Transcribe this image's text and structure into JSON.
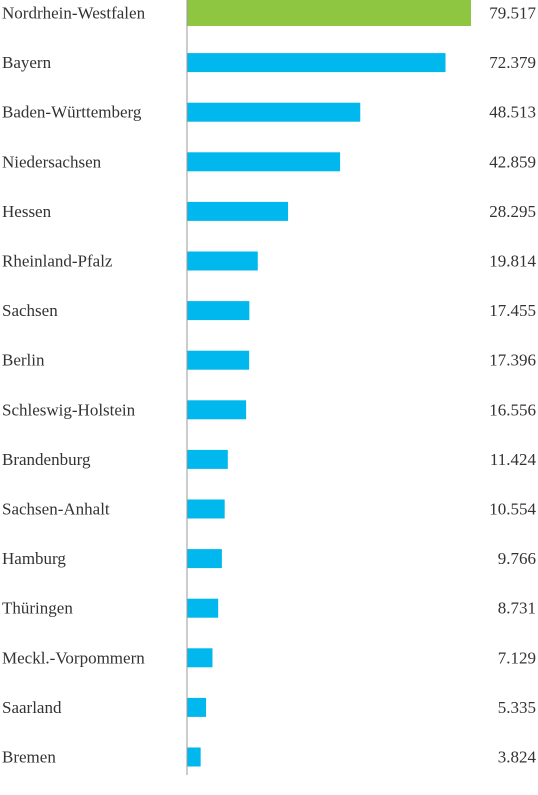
{
  "chart_data": {
    "type": "bar",
    "orientation": "horizontal",
    "categories": [
      "Nordrhein-Westfalen",
      "Bayern",
      "Baden-Württemberg",
      "Niedersachsen",
      "Hessen",
      "Rheinland-Pfalz",
      "Sachsen",
      "Berlin",
      "Schleswig-Holstein",
      "Brandenburg",
      "Sachsen-Anhalt",
      "Hamburg",
      "Thüringen",
      "Meckl.-Vorpommern",
      "Saarland",
      "Bremen"
    ],
    "values": [
      79517,
      72379,
      48513,
      42859,
      28295,
      19814,
      17455,
      17396,
      16556,
      11424,
      10554,
      9766,
      8731,
      7129,
      5335,
      3824
    ],
    "value_labels": [
      "79.517",
      "72.379",
      "48.513",
      "42.859",
      "28.295",
      "19.814",
      "17.455",
      "17.396",
      "16.556",
      "11.424",
      "10.554",
      "9.766",
      "8.731",
      "7.129",
      "5.335",
      "3.824"
    ],
    "xlim": [
      0,
      79517
    ],
    "grid": false,
    "colors": {
      "default_bar": "#00b8ee",
      "highlight_bar": "#8ec641",
      "axis_line": "#9a9a9a"
    },
    "highlight_index": 0
  }
}
